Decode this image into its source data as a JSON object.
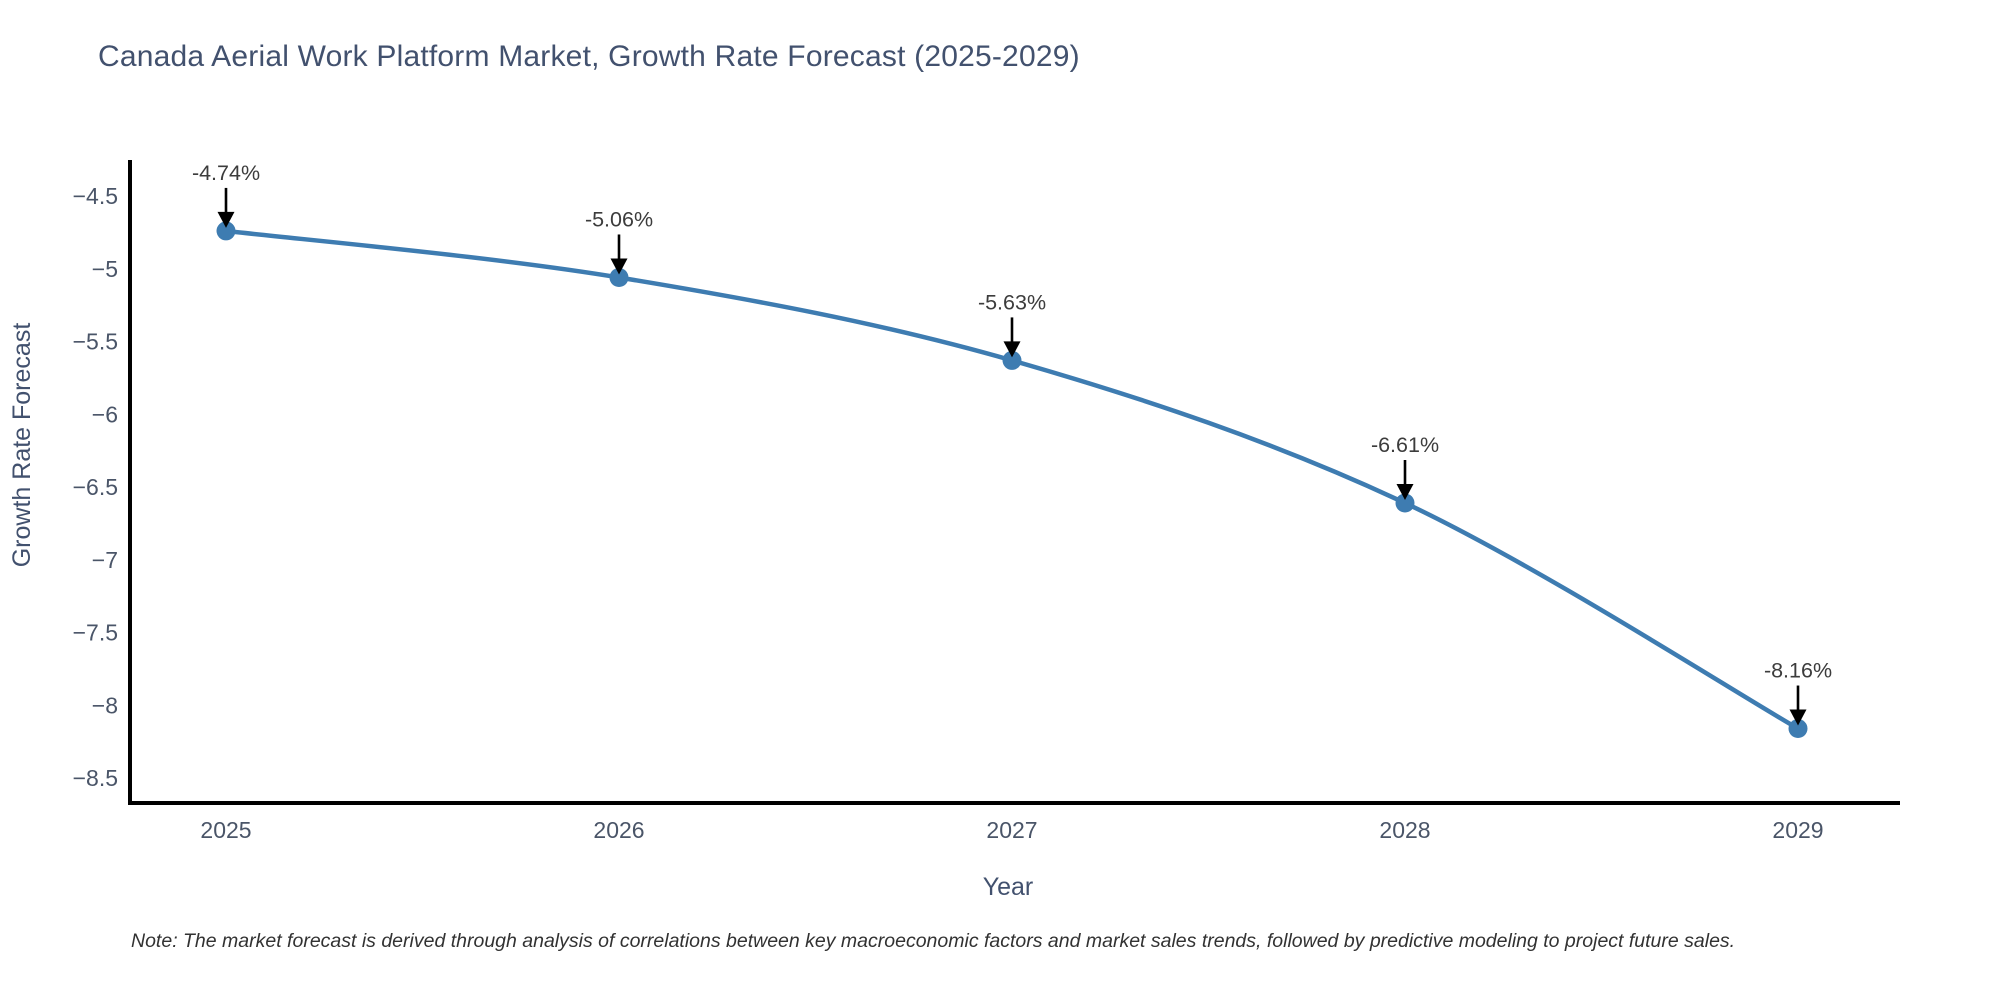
{
  "page": {
    "title": "Canada Aerial Work Platform Market, Growth Rate Forecast (2025-2029)",
    "note": "Note: The market forecast is derived through analysis of correlations between key macroeconomic factors and market sales trends, followed by predictive modeling to project future sales."
  },
  "chart_data": {
    "type": "line",
    "title": "Canada Aerial Work Platform Market, Growth Rate Forecast (2025-2029)",
    "categories": [
      "2025",
      "2026",
      "2027",
      "2028",
      "2029"
    ],
    "series": [
      {
        "name": "Growth Rate Forecast",
        "values": [
          -4.74,
          -5.06,
          -5.63,
          -6.61,
          -8.16
        ]
      }
    ],
    "point_labels": [
      "-4.74%",
      "-5.06%",
      "-5.63%",
      "-6.61%",
      "-8.16%"
    ],
    "xlabel": "Year",
    "ylabel": "Growth Rate Forecast",
    "ylim": [
      -8.5,
      -4.5
    ],
    "yticks": [
      -4.5,
      -5,
      -5.5,
      -6,
      -6.5,
      -7,
      -7.5,
      -8,
      -8.5
    ],
    "ytick_labels": [
      "−4.5",
      "−5",
      "−5.5",
      "−6",
      "−6.5",
      "−7",
      "−7.5",
      "−8",
      "−8.5"
    ],
    "grid": false,
    "legend": "none",
    "line_shape": "spline",
    "annotation_style": "down-arrow-to-point",
    "colors": {
      "line": "#3E7CB1",
      "marker": "#3E7CB1",
      "arrow": "#000000",
      "title": "#42516E",
      "axis_line": "#000000",
      "tick_label": "#4A5568",
      "axis_title": "#42516E",
      "annotation_text": "#3C3C3C",
      "note_text": "#323232",
      "background": "#FFFFFF"
    }
  }
}
